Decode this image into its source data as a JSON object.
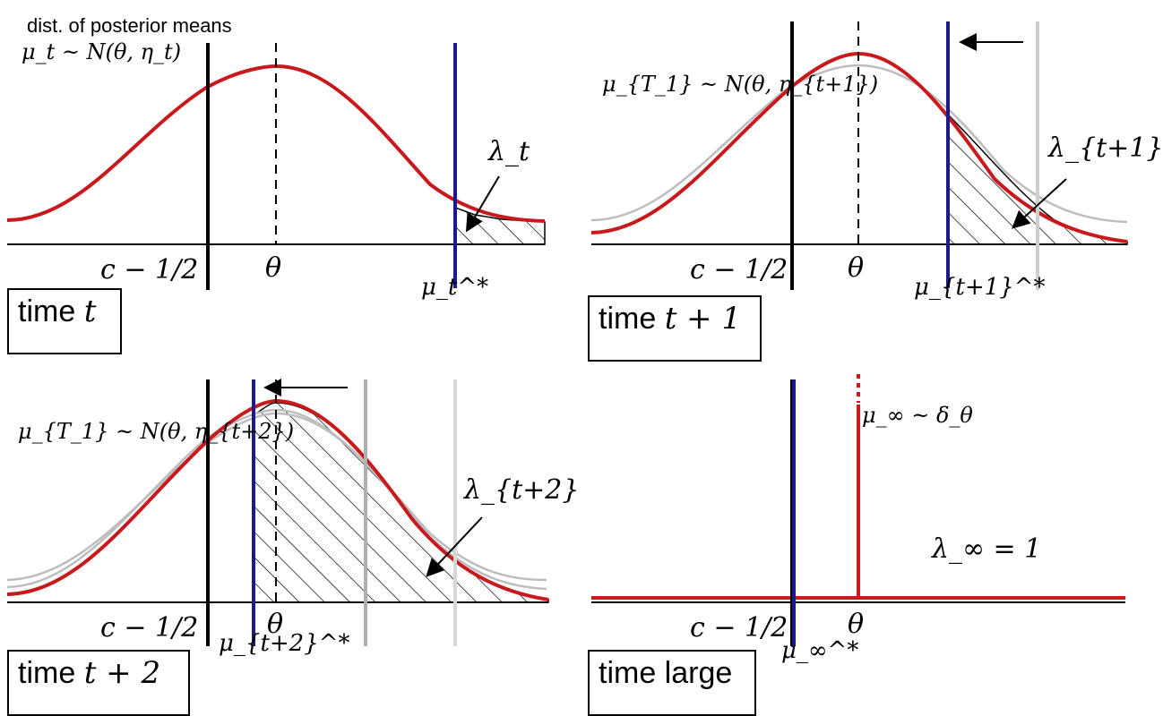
{
  "panels": [
    {
      "id": "t",
      "time_label": "time",
      "time_var": "t",
      "caption": "dist. of posterior means",
      "dist_label": "μ_t ~ N(θ, η_t)",
      "lambda_label": "λ_t",
      "threshold_label": "μ_t^*",
      "left_label": "c − 1/2",
      "theta_label": "θ"
    },
    {
      "id": "t1",
      "time_label": "time",
      "time_var": "t + 1",
      "dist_label": "μ_{T_1} ~ N(θ, η_{t+1})",
      "lambda_label": "λ_{t+1}",
      "threshold_label": "μ_{t+1}^*",
      "left_label": "c − 1/2",
      "theta_label": "θ"
    },
    {
      "id": "t2",
      "time_label": "time",
      "time_var": "t + 2",
      "dist_label": "μ_{T_1} ~ N(θ, η_{t+2})",
      "lambda_label": "λ_{t+2}",
      "threshold_label": "μ_{t+2}^*",
      "left_label": "c − 1/2",
      "theta_label": "θ"
    },
    {
      "id": "large",
      "time_label": "time large",
      "dist_label": "μ_∞ ~ δ_θ",
      "lambda_label": "λ_∞ = 1",
      "threshold_label": "μ_∞^*",
      "left_label": "c − 1/2",
      "theta_label": "θ"
    }
  ],
  "colors": {
    "density": "#c8191c",
    "threshold": "#1a1a8c",
    "old_curve": "#bdbdbd",
    "axis": "#000000"
  }
}
